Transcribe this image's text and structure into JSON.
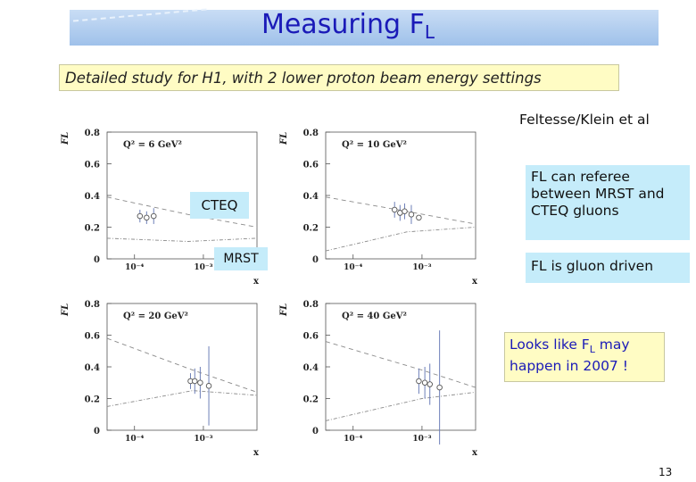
{
  "slide": {
    "title_main": "Measuring  F",
    "title_sub": "L",
    "subtitle": "Detailed study for H1, with 2 lower proton beam energy settings",
    "credit": "Feltesse/Klein et al",
    "page_number": "13"
  },
  "annotations": {
    "referee": "FL can referee between MRST and CTEQ gluons",
    "gluon": "FL is gluon driven",
    "looks_like_pre": "Looks like F",
    "looks_like_sub": "L",
    "looks_like_post": " may happen in 2007 !",
    "cteq_label": "CTEQ",
    "mrst_label": "MRST"
  },
  "chart_data": [
    {
      "type": "scatter",
      "title": "Q² = 6 GeV²",
      "ylabel": "F_L",
      "xlabel": "x",
      "xscale": "log",
      "xlim": [
        4e-05,
        0.006
      ],
      "ylim": [
        0,
        0.8
      ],
      "yticks": [
        "0",
        "0.2",
        "0.4",
        "0.6",
        "0.8"
      ],
      "xticks": [
        "10⁻⁴",
        "10⁻³"
      ],
      "points": [
        {
          "x": 0.00012,
          "y": 0.27,
          "err": 0.04
        },
        {
          "x": 0.00015,
          "y": 0.26,
          "err": 0.04
        },
        {
          "x": 0.00019,
          "y": 0.27,
          "err": 0.05
        }
      ],
      "curves": {
        "cteq": [
          [
            4e-05,
            0.39
          ],
          [
            0.0006,
            0.28
          ],
          [
            0.006,
            0.2
          ]
        ],
        "mrst": [
          [
            4e-05,
            0.13
          ],
          [
            0.0006,
            0.11
          ],
          [
            0.006,
            0.13
          ]
        ]
      }
    },
    {
      "type": "scatter",
      "title": "Q² = 10 GeV²",
      "ylabel": "F_L",
      "xlabel": "x",
      "xscale": "log",
      "xlim": [
        4e-05,
        0.006
      ],
      "ylim": [
        0,
        0.8
      ],
      "yticks": [
        "0",
        "0.2",
        "0.4",
        "0.6",
        "0.8"
      ],
      "xticks": [
        "10⁻⁴",
        "10⁻³"
      ],
      "points": [
        {
          "x": 0.0004,
          "y": 0.31,
          "err": 0.05
        },
        {
          "x": 0.00048,
          "y": 0.29,
          "err": 0.05
        },
        {
          "x": 0.00056,
          "y": 0.3,
          "err": 0.05
        },
        {
          "x": 0.0007,
          "y": 0.28,
          "err": 0.06
        },
        {
          "x": 0.0009,
          "y": 0.26,
          "err": 0.0
        }
      ],
      "curves": {
        "cteq": [
          [
            4e-05,
            0.39
          ],
          [
            0.0006,
            0.3
          ],
          [
            0.006,
            0.22
          ]
        ],
        "mrst": [
          [
            4e-05,
            0.05
          ],
          [
            0.0006,
            0.17
          ],
          [
            0.006,
            0.2
          ]
        ]
      }
    },
    {
      "type": "scatter",
      "title": "Q² = 20 GeV²",
      "ylabel": "F_L",
      "xlabel": "x",
      "xscale": "log",
      "xlim": [
        4e-05,
        0.006
      ],
      "ylim": [
        0,
        0.8
      ],
      "yticks": [
        "0",
        "0.2",
        "0.4",
        "0.6",
        "0.8"
      ],
      "xticks": [
        "10⁻⁴",
        "10⁻³"
      ],
      "points": [
        {
          "x": 0.00065,
          "y": 0.31,
          "err": 0.05
        },
        {
          "x": 0.00075,
          "y": 0.31,
          "err": 0.08
        },
        {
          "x": 0.0009,
          "y": 0.3,
          "err": 0.1
        },
        {
          "x": 0.0012,
          "y": 0.28,
          "err": 0.25
        }
      ],
      "curves": {
        "cteq": [
          [
            4e-05,
            0.58
          ],
          [
            0.0007,
            0.38
          ],
          [
            0.006,
            0.24
          ]
        ],
        "mrst": [
          [
            4e-05,
            0.15
          ],
          [
            0.0007,
            0.25
          ],
          [
            0.006,
            0.22
          ]
        ]
      }
    },
    {
      "type": "scatter",
      "title": "Q² = 40 GeV²",
      "ylabel": "F_L",
      "xlabel": "x",
      "xscale": "log",
      "xlim": [
        4e-05,
        0.006
      ],
      "ylim": [
        0,
        0.8
      ],
      "yticks": [
        "0",
        "0.2",
        "0.4",
        "0.6",
        "0.8"
      ],
      "xticks": [
        "10⁻⁴",
        "10⁻³"
      ],
      "points": [
        {
          "x": 0.0009,
          "y": 0.31,
          "err": 0.08
        },
        {
          "x": 0.0011,
          "y": 0.3,
          "err": 0.1
        },
        {
          "x": 0.0013,
          "y": 0.29,
          "err": 0.13
        },
        {
          "x": 0.0018,
          "y": 0.27,
          "err": 0.36
        }
      ],
      "curves": {
        "cteq": [
          [
            4e-05,
            0.56
          ],
          [
            0.001,
            0.38
          ],
          [
            0.006,
            0.27
          ]
        ],
        "mrst": [
          [
            4e-05,
            0.06
          ],
          [
            0.001,
            0.2
          ],
          [
            0.006,
            0.24
          ]
        ]
      }
    }
  ]
}
